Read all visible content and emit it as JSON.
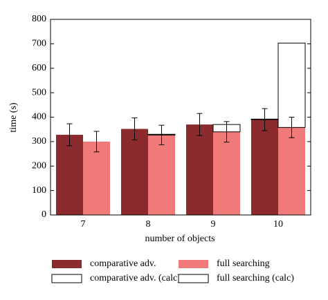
{
  "chart_data": {
    "type": "bar",
    "x_label": "number of objects",
    "y_label": "time (s)",
    "categories": [
      "7",
      "8",
      "9",
      "10"
    ],
    "series": [
      {
        "name": "comparative adv.",
        "color": "#8b2b2d",
        "values": [
          328,
          352,
          370,
          390
        ],
        "errors": [
          45,
          45,
          45,
          45
        ]
      },
      {
        "name": "comparative adv. (calc)",
        "color": "#ffffff",
        "values": [
          null,
          null,
          null,
          2
        ],
        "base": 0
      },
      {
        "name": "full searching",
        "color": "#f07a7a",
        "values": [
          300,
          327,
          340,
          358
        ],
        "errors": [
          42,
          40,
          42,
          42
        ]
      },
      {
        "name": "full searching (calc)",
        "color": "#ffffff",
        "values": [
          null,
          3,
          30,
          345
        ],
        "base": 2
      }
    ],
    "ylim": [
      0,
      800
    ],
    "yticks": [
      0,
      100,
      200,
      300,
      400,
      500,
      600,
      700,
      800
    ]
  }
}
